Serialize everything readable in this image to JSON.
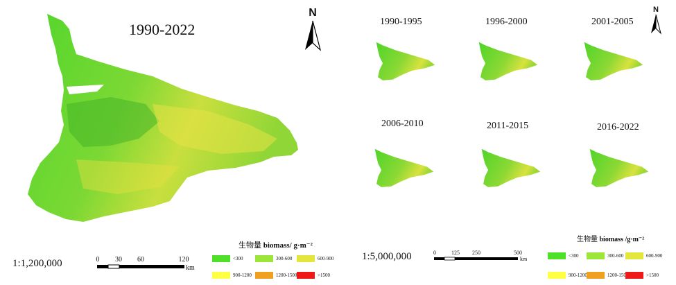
{
  "main_map": {
    "title": "1990-2022",
    "scale_ratio": "1:1,200,000",
    "scalebar": {
      "ticks": [
        "0",
        "30",
        "60",
        "120"
      ],
      "unit": "km"
    }
  },
  "small_maps": [
    {
      "title": "1990-1995"
    },
    {
      "title": "1996-2000"
    },
    {
      "title": "2001-2005"
    },
    {
      "title": "2006-2010"
    },
    {
      "title": "2011-2015"
    },
    {
      "title": "2016-2022"
    }
  ],
  "small_scale": {
    "scale_ratio": "1:5,000,000",
    "scalebar": {
      "ticks": [
        "0",
        "125",
        "250",
        "500"
      ],
      "unit": "km"
    }
  },
  "legend_left": {
    "title_cn": "生物量",
    "title_en": "biomass/ g·m⁻²"
  },
  "legend_right": {
    "title_cn": "生物量",
    "title_en": "biomass /g·m⁻²"
  },
  "legend_classes": [
    {
      "label": "<300",
      "color": "#4fe02a"
    },
    {
      "label": "300-600",
      "color": "#9ce63a"
    },
    {
      "label": "600-900",
      "color": "#e3e63c"
    },
    {
      "label": "900-1200",
      "color": "#ffff44"
    },
    {
      "label": "1200-1500",
      "color": "#f0a020"
    },
    {
      "label": ">1500",
      "color": "#ee1a1a"
    }
  ],
  "north_label": "N"
}
